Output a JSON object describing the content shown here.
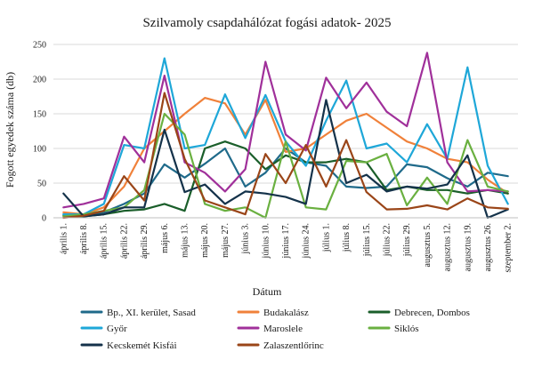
{
  "chart_data": {
    "type": "line",
    "title": "Szilvamoly csapdahálózat fogási adatok- 2025",
    "xlabel": "Dátum",
    "ylabel": "Fogott egyedek száma (db)",
    "ylim": [
      0,
      250
    ],
    "yticks": [
      0,
      50,
      100,
      150,
      200,
      250
    ],
    "grid": "horizontal",
    "legend_position": "bottom",
    "categories": [
      "április 1.",
      "április 8.",
      "április 15.",
      "április 22.",
      "április 29.",
      "május 6.",
      "május 13.",
      "május 20.",
      "május 27.",
      "június 3.",
      "június 10.",
      "június 17.",
      "június 24.",
      "július 1.",
      "július 8.",
      "július 15.",
      "július 22.",
      "július 29.",
      "augusztus 5.",
      "augusztus 12.",
      "augusztus 19.",
      "augusztus 26.",
      "szeptember 2."
    ],
    "series": [
      {
        "name": "Bp., XI. kerület, Sasad",
        "color": "#1f6a8a",
        "values": [
          5,
          3,
          8,
          20,
          35,
          77,
          58,
          78,
          100,
          45,
          65,
          100,
          80,
          75,
          45,
          43,
          45,
          77,
          73,
          57,
          45,
          65,
          60
        ]
      },
      {
        "name": "Budakalász",
        "color": "#f0813a",
        "values": [
          8,
          5,
          15,
          45,
          100,
          125,
          150,
          173,
          165,
          120,
          170,
          95,
          100,
          120,
          140,
          150,
          130,
          110,
          100,
          85,
          80,
          55,
          35
        ]
      },
      {
        "name": "Debrecen, Dombos",
        "color": "#1a5e2a",
        "values": [
          3,
          2,
          5,
          10,
          12,
          20,
          10,
          100,
          110,
          100,
          70,
          90,
          80,
          80,
          85,
          80,
          40,
          45,
          40,
          40,
          35,
          40,
          35
        ]
      },
      {
        "name": "Győr",
        "color": "#1ea7d8",
        "values": [
          5,
          5,
          20,
          105,
          100,
          230,
          100,
          105,
          178,
          115,
          177,
          110,
          75,
          140,
          198,
          100,
          107,
          80,
          135,
          85,
          217,
          75,
          20
        ]
      },
      {
        "name": "Maroslele",
        "color": "#a0309a",
        "values": [
          15,
          20,
          28,
          117,
          80,
          205,
          80,
          65,
          38,
          70,
          225,
          120,
          97,
          202,
          158,
          195,
          153,
          132,
          238,
          80,
          38,
          40,
          38
        ]
      },
      {
        "name": "Siklós",
        "color": "#6ab040",
        "values": [
          2,
          5,
          10,
          15,
          40,
          150,
          120,
          20,
          10,
          15,
          0,
          110,
          15,
          12,
          82,
          80,
          92,
          18,
          58,
          20,
          112,
          45,
          38
        ]
      },
      {
        "name": "Kecskemét Kisfái",
        "color": "#14324a",
        "values": [
          35,
          2,
          5,
          15,
          15,
          127,
          37,
          48,
          20,
          38,
          35,
          30,
          20,
          170,
          50,
          62,
          38,
          45,
          42,
          48,
          90,
          0,
          12
        ]
      },
      {
        "name": "Zalaszentlőrinc",
        "color": "#9a4518",
        "values": [
          0,
          3,
          10,
          60,
          25,
          180,
          85,
          25,
          15,
          5,
          92,
          50,
          105,
          45,
          112,
          37,
          12,
          13,
          18,
          12,
          28,
          15,
          13
        ]
      }
    ]
  }
}
